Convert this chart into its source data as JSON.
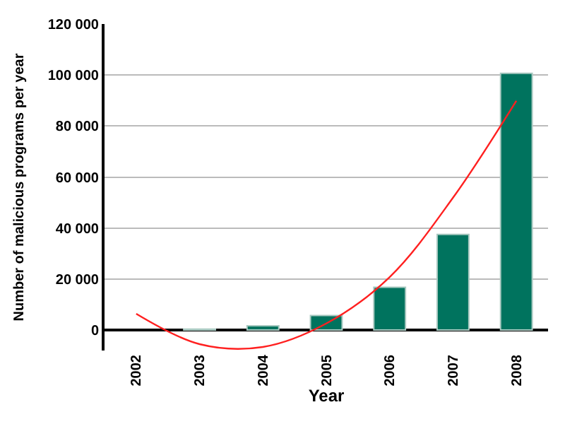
{
  "chart_data": {
    "type": "bar",
    "xlabel": "Year",
    "ylabel": "Number of malicious programs per year",
    "categories": [
      "2002",
      "2003",
      "2004",
      "2005",
      "2006",
      "2007",
      "2008"
    ],
    "series": [
      {
        "color": "#00735e",
        "values": [
          null,
          400,
          1700,
          5700,
          16800,
          37500,
          100700
        ]
      },
      {
        "type": "line",
        "color": "#ff2020",
        "values": [
          6400,
          -5500,
          -6600,
          2600,
          20800,
          51900,
          89900
        ]
      }
    ],
    "ylim": [
      -8000,
      120000
    ],
    "yticks": [
      0,
      {
        "value": 20000,
        "label": "20 000"
      },
      {
        "value": 40000,
        "label": "40 000"
      },
      {
        "value": 60000,
        "label": "60 000"
      },
      {
        "value": 80000,
        "label": "80 000"
      },
      {
        "value": 100000,
        "label": "100 000"
      },
      {
        "value": 120000,
        "label": "120 000"
      }
    ],
    "grid": "y",
    "legend": false
  }
}
